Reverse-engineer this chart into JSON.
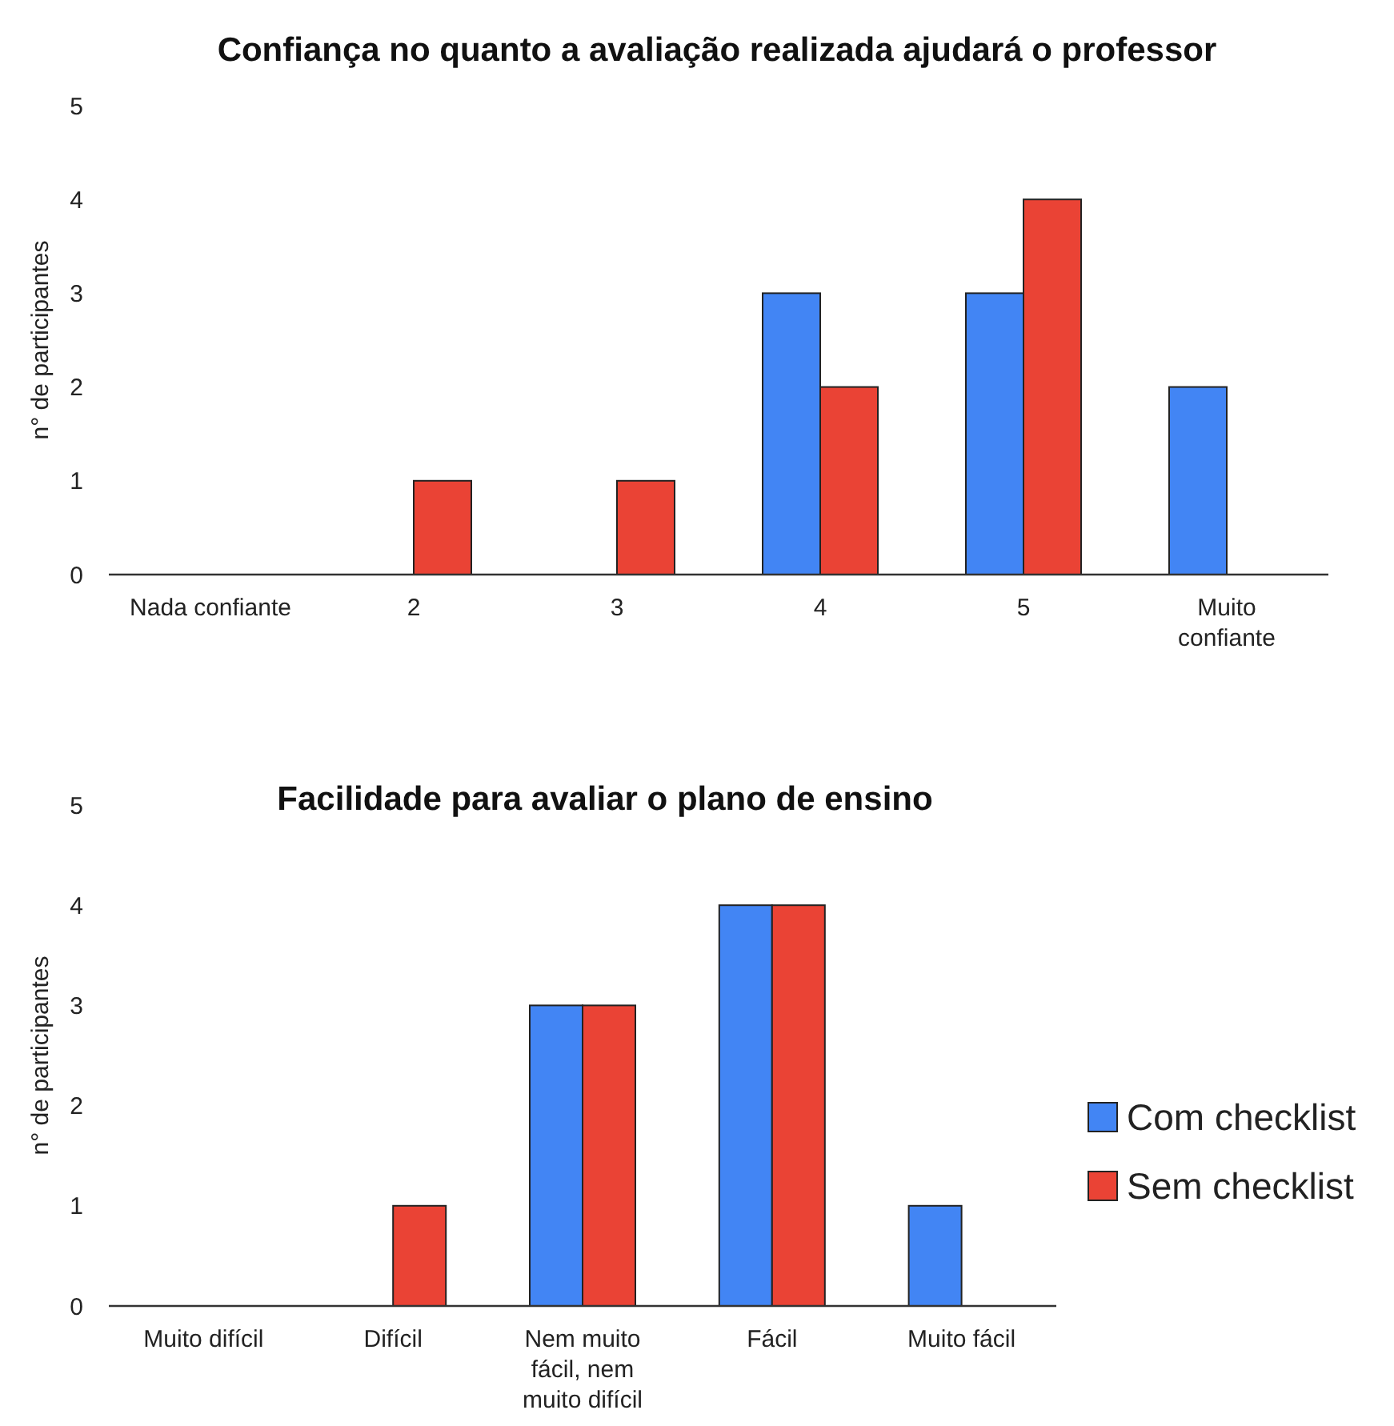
{
  "chart_data": [
    {
      "type": "bar",
      "title": "Confiança no quanto a avaliação realizada ajudará o professor",
      "ylabel": "n° de participantes",
      "categories": [
        "Nada confiante",
        "2",
        "3",
        "4",
        "5",
        "Muito confiante"
      ],
      "ylim": [
        0,
        5
      ],
      "yticks": [
        0,
        1,
        2,
        3,
        4,
        5
      ],
      "grid": false,
      "legend": false,
      "series": [
        {
          "color": "#4285f4",
          "values": [
            0,
            0,
            0,
            3,
            3,
            2
          ]
        },
        {
          "color": "#ea4335",
          "values": [
            0,
            1,
            1,
            2,
            4,
            0
          ]
        }
      ]
    },
    {
      "type": "bar",
      "title": "Facilidade para avaliar o plano de ensino",
      "ylabel": "n° de participantes",
      "categories": [
        "Muito difícil",
        "Difícil",
        "Nem muito fácil, nem muito difícil",
        "Fácil",
        "Muito fácil"
      ],
      "ylim": [
        0,
        5
      ],
      "yticks": [
        0,
        1,
        2,
        3,
        4,
        5
      ],
      "grid": false,
      "legend": "right",
      "series": [
        {
          "name": "Com checklist",
          "color": "#4285f4",
          "values": [
            0,
            0,
            3,
            4,
            1
          ]
        },
        {
          "name": "Sem checklist",
          "color": "#ea4335",
          "values": [
            0,
            1,
            3,
            4,
            0
          ]
        }
      ]
    }
  ]
}
